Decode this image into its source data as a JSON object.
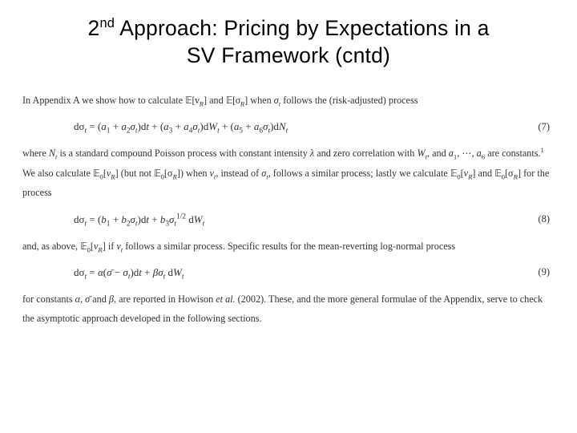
{
  "title": {
    "line1_pre": "2",
    "line1_sup": "nd",
    "line1_post": " Approach: Pricing by Expectations in a",
    "line2": "SV Framework (cntd)",
    "fontsize": 26.5,
    "color": "#000000"
  },
  "body": {
    "font_family": "Times New Roman",
    "fontsize": 12.2,
    "color": "#333333",
    "line_height": 2.0
  },
  "para1": {
    "t1": "In Appendix A we show how to calculate ",
    "e1": "𝔼[v",
    "e1s": "R",
    "e1c": "]",
    "t2": " and ",
    "e2": "𝔼[σ",
    "e2s": "R",
    "e2c": "]",
    "t3": " when ",
    "e3": "σ",
    "e3s": "t",
    "t4": " follows the (risk-adjusted) process"
  },
  "eq7": {
    "lhs": "dσ",
    "lhs_s": "t",
    "eq": " = (",
    "a1": "a",
    "a1s": "1",
    "plus1": " + ",
    "a2": "a",
    "a2s": "2",
    "sig1": "σ",
    "sig1s": "t",
    "rhs1": ")d",
    "tvar": "t",
    "plus2": " + (",
    "a3": "a",
    "a3s": "3",
    "plus3": " + ",
    "a4": "a",
    "a4s": "4",
    "sig2": "σ",
    "sig2s": "t",
    "rhs2": ")d",
    "W": "W",
    "Ws": "t",
    "plus4": " + (",
    "a5": "a",
    "a5s": "5",
    "plus5": " + ",
    "a6": "a",
    "a6s": "6",
    "sig3": "σ",
    "sig3s": "t",
    "rhs3": ")d",
    "N": "N",
    "Ns": "t",
    "number": "(7)"
  },
  "para2": {
    "t1": "where ",
    "N": "N",
    "Ns": "t",
    "t2": " is a standard compound Poisson process with constant intensity ",
    "lam": "λ",
    "t3": " and zero correlation with ",
    "W": "W",
    "Ws": "t",
    "t4": ", and ",
    "a1": "a",
    "a1s": "1",
    "dots": ", ⋯, ",
    "a6": "a",
    "a6s": "6",
    "t5": " are constants.",
    "fn": "1",
    "t6": " We also calculate ",
    "E0": "𝔼",
    "E0s": "0",
    "br1": "[",
    "vR": "v",
    "vRs": "R",
    "br2": "]",
    "t7": " (but not ",
    "E0b": "𝔼",
    "E0bs": "0",
    "br3": "[σ",
    "sR": "R",
    "br4": "])",
    "t8": " when ",
    "v": "v",
    "vs": "t",
    "t9": ", instead of ",
    "sig": "σ",
    "sigs": "t",
    "t10": ", follows a similar process; lastly we calculate ",
    "E0c": "𝔼",
    "E0cs": "0",
    "br5": "[",
    "vRc": "v",
    "vRcs": "R",
    "br6": "]",
    "t11": " and ",
    "E0d": "𝔼",
    "E0ds": "0",
    "br7": "[σ",
    "sRd": "R",
    "br8": "]",
    "t12": " for the process"
  },
  "eq8": {
    "lhs": "dσ",
    "lhs_s": "t",
    "eq": " = (",
    "b1": "b",
    "b1s": "1",
    "plus1": " + ",
    "b2": "b",
    "b2s": "2",
    "sig1": "σ",
    "sig1s": "t",
    "rhs1": ")d",
    "tvar": "t",
    "plus2": " + ",
    "b3": "b",
    "b3s": "3",
    "sig2": "σ",
    "sig2s": "t",
    "exp": "1/2",
    "dW": " d",
    "W": "W",
    "Ws": "t",
    "number": "(8)"
  },
  "para3": {
    "t1": "and, as above, ",
    "E0": "𝔼",
    "E0s": "0",
    "br1": "[",
    "vR": "v",
    "vRs": "R",
    "br2": "]",
    "t2": " if ",
    "v": "v",
    "vs": "t",
    "t3": " follows a similar process. Specific results for the mean-reverting log-normal process"
  },
  "eq9": {
    "lhs": "dσ",
    "lhs_s": "t",
    "eq": " = ",
    "alpha": "α",
    "lp": "(",
    "sigbar": "σ̄",
    "minus": " − ",
    "sig": "σ",
    "sigs": "t",
    "rp": ")d",
    "tvar": "t",
    "plus": " + ",
    "beta": "β",
    "sig2": "σ",
    "sig2s": "t",
    "dW": " d",
    "W": "W",
    "Ws": "t",
    "number": "(9)"
  },
  "para4": {
    "t1": "for constants ",
    "alpha": "α",
    "c1": ", ",
    "sigbar": "σ̄",
    "t2": " and ",
    "beta": "β",
    "t3": ", are reported in Howison ",
    "etal": "et al.",
    "t4": " (2002). These, and the more general formulae of the Appendix, serve to check the asymptotic approach developed in the following sections."
  }
}
